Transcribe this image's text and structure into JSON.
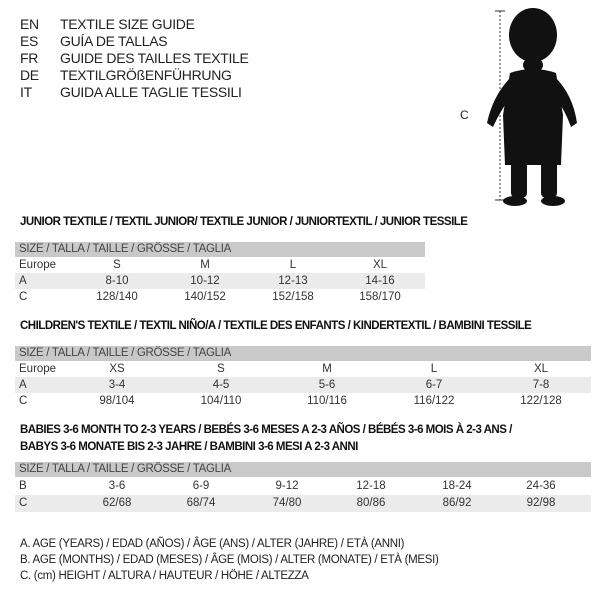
{
  "languages": [
    {
      "code": "EN",
      "title": "TEXTILE SIZE GUIDE"
    },
    {
      "code": "ES",
      "title": "GUÍA DE TALLAS"
    },
    {
      "code": "FR",
      "title": "GUIDE DES TAILLES TEXTILE"
    },
    {
      "code": "DE",
      "title": "TEXTILGRÖßENFÜHRUNG"
    },
    {
      "code": "IT",
      "title": "GUIDA ALLE TAGLIE TESSILI"
    }
  ],
  "figure": {
    "measure_label": "C"
  },
  "size_header": "SIZE / TALLA / TAILLE / GRÖSSE / TAGLIA",
  "junior": {
    "title": "JUNIOR TEXTILE / TEXTIL JUNIOR/ TEXTILE JUNIOR / JUNIORTEXTIL / JUNIOR TESSILE",
    "rows": [
      {
        "label": "Europe",
        "values": [
          "S",
          "M",
          "L",
          "XL"
        ]
      },
      {
        "label": "A",
        "values": [
          "8-10",
          "10-12",
          "12-13",
          "14-16"
        ]
      },
      {
        "label": "C",
        "values": [
          "128/140",
          "140/152",
          "152/158",
          "158/170"
        ]
      }
    ]
  },
  "children": {
    "title": "CHILDREN'S TEXTILE / TEXTIL NIÑO/A / TEXTILE DES ENFANTS / KINDERTEXTIL / BAMBINI TESSILE",
    "rows": [
      {
        "label": "Europe",
        "values": [
          "XS",
          "S",
          "M",
          "L",
          "XL"
        ]
      },
      {
        "label": "A",
        "values": [
          "3-4",
          "4-5",
          "5-6",
          "6-7",
          "7-8"
        ]
      },
      {
        "label": "C",
        "values": [
          "98/104",
          "104/110",
          "110/116",
          "116/122",
          "122/128"
        ]
      }
    ]
  },
  "babies": {
    "title_line1": "BABIES 3-6 MONTH TO 2-3 YEARS / BEBÉS 3-6 MESES A 2-3 AÑOS / BÉBÉS 3-6 MOIS À 2-3 ANS /",
    "title_line2": "BABYS 3-6 MONATE BIS 2-3 JAHRE / BAMBINI 3-6 MESI A 2-3 ANNI",
    "rows": [
      {
        "label": "B",
        "values": [
          "3-6",
          "6-9",
          "9-12",
          "12-18",
          "18-24",
          "24-36"
        ]
      },
      {
        "label": "C",
        "values": [
          "62/68",
          "68/74",
          "74/80",
          "80/86",
          "86/92",
          "92/98"
        ]
      }
    ]
  },
  "notes": [
    "A. AGE (YEARS) / EDAD (AÑOS) / ÂGE (ANS) / ALTER (JAHRE) / ETÀ (ANNI)",
    "B. AGE (MONTHS) / EDAD (MESES) / ÂGE (MOIS) / ALTER (MONATE) / ETÀ (MESI)",
    "C. (cm) HEIGHT / ALTURA / HAUTEUR / HÖHE / ALTEZZA"
  ]
}
